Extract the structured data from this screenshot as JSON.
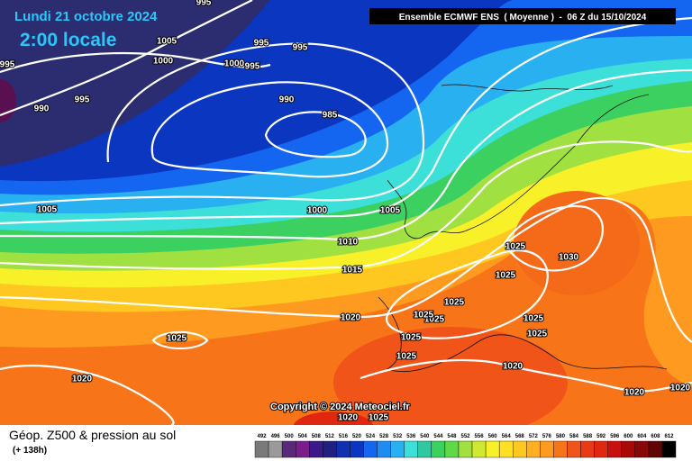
{
  "header": {
    "date": "Lundi 21 octobre 2024",
    "time": "2:00 locale",
    "model": "Ensemble ECMWF ENS  ( Moyenne )  -  06 Z du 15/10/2024"
  },
  "isobar_labels": [
    "995",
    "1005",
    "995",
    "995",
    "1000",
    "1000",
    "995",
    "995",
    "995",
    "990",
    "990",
    "985",
    "1005",
    "1000",
    "1005",
    "1010",
    "1015",
    "1025",
    "1030",
    "1025",
    "1025",
    "1020",
    "1025",
    "1025",
    "1025",
    "1025",
    "1025",
    "1025",
    "1020",
    "1020",
    "1020",
    "1020",
    "1025",
    "1025",
    "1020"
  ],
  "copyright": "Copyright © 2024 Meteociel.fr",
  "footer": {
    "title": "Géop. Z500 & pression au sol",
    "subtitle": "(+ 138h)"
  },
  "colorbar": [
    492,
    496,
    500,
    504,
    508,
    512,
    516,
    520,
    524,
    528,
    532,
    536,
    540,
    544,
    548,
    552,
    556,
    560,
    564,
    568,
    572,
    576,
    580,
    584,
    588,
    592,
    596,
    600,
    604,
    608,
    612
  ]
}
